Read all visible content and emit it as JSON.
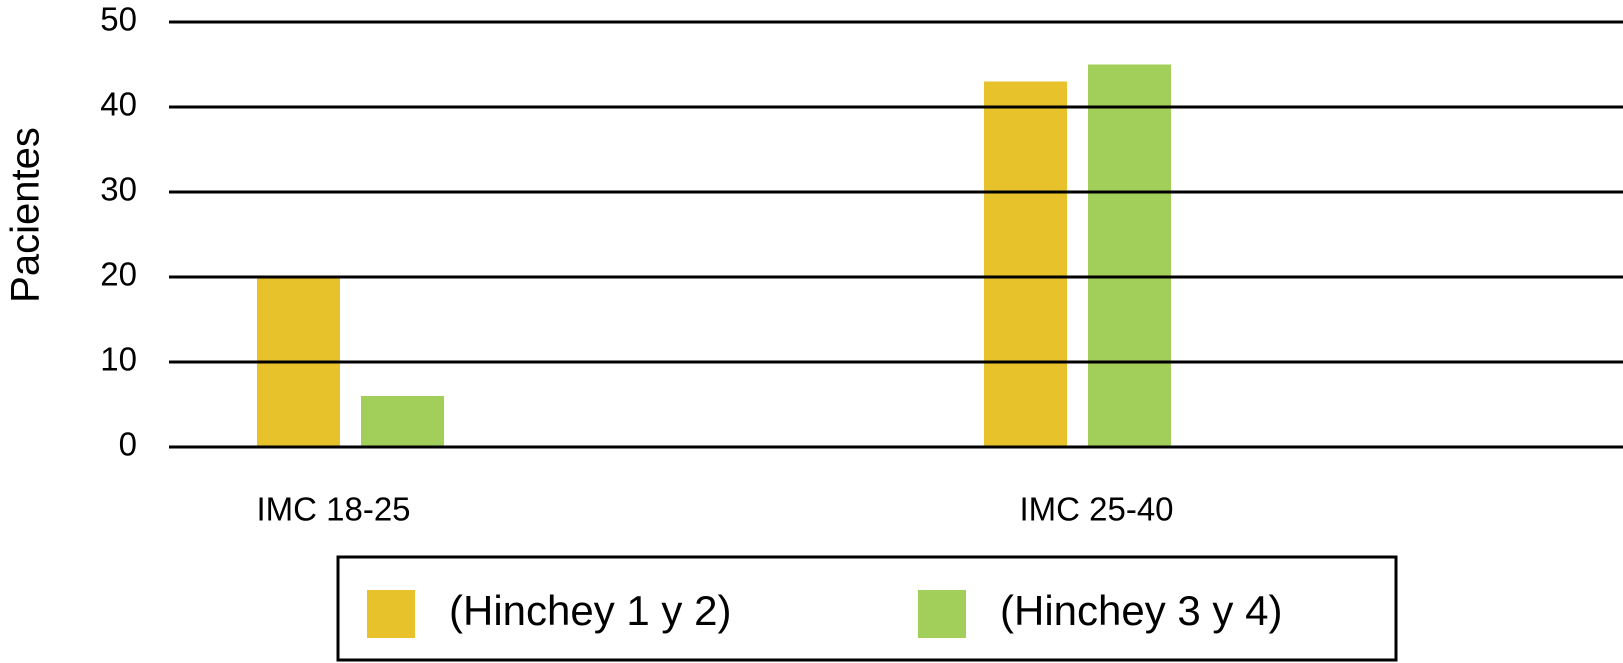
{
  "chart_data": {
    "type": "bar",
    "y_label": "Pacientes",
    "categories": [
      "IMC 18-25",
      "IMC 25-40"
    ],
    "series": [
      {
        "name": "(Hinchey 1 y 2)",
        "color": "#e8c22a",
        "values": [
          20,
          43
        ]
      },
      {
        "name": "(Hinchey 3 y 4)",
        "color": "#a2cf5a",
        "values": [
          6,
          45
        ]
      }
    ],
    "ylim": [
      0,
      50
    ],
    "yticks": [
      0,
      10,
      20,
      30,
      40,
      50
    ],
    "grid": true,
    "legend": "bottom"
  }
}
